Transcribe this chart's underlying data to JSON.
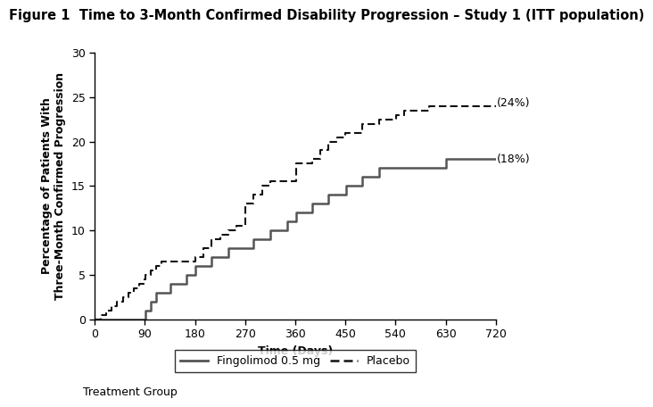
{
  "title": "Figure 1  Time to 3-Month Confirmed Disability Progression – Study 1 (ITT population)",
  "xlabel": "Time (Days)",
  "ylabel": "Percentage of Patients With\nThree-Month Confirmed Progression",
  "xlim": [
    0,
    720
  ],
  "ylim": [
    0,
    30
  ],
  "xticks": [
    0,
    90,
    180,
    270,
    360,
    450,
    540,
    630,
    720
  ],
  "yticks": [
    0,
    5,
    10,
    15,
    20,
    25,
    30
  ],
  "fingolimod_x": [
    0,
    10,
    90,
    91,
    100,
    110,
    120,
    135,
    150,
    165,
    180,
    181,
    195,
    210,
    225,
    240,
    255,
    270,
    285,
    300,
    315,
    330,
    345,
    360,
    361,
    375,
    390,
    405,
    420,
    435,
    450,
    451,
    465,
    480,
    495,
    510,
    525,
    540,
    555,
    570,
    585,
    600,
    615,
    630,
    631,
    645,
    660,
    675,
    690,
    705,
    720
  ],
  "fingolimod_y": [
    0,
    0,
    0,
    1,
    2,
    3,
    3,
    4,
    4,
    5,
    5,
    6,
    6,
    7,
    7,
    8,
    8,
    8,
    9,
    9,
    10,
    10,
    11,
    11,
    12,
    12,
    13,
    13,
    14,
    14,
    14,
    15,
    15,
    16,
    16,
    17,
    17,
    17,
    17,
    17,
    17,
    17,
    17,
    17,
    18,
    18,
    18,
    18,
    18,
    18,
    18
  ],
  "placebo_x": [
    0,
    10,
    20,
    30,
    40,
    50,
    60,
    70,
    80,
    90,
    91,
    100,
    110,
    120,
    130,
    140,
    150,
    160,
    170,
    180,
    181,
    195,
    210,
    225,
    240,
    255,
    270,
    271,
    285,
    300,
    315,
    330,
    345,
    360,
    361,
    390,
    405,
    420,
    435,
    450,
    451,
    480,
    510,
    540,
    541,
    555,
    570,
    585,
    600,
    615,
    630,
    631,
    660,
    690,
    720
  ],
  "placebo_y": [
    0,
    0.5,
    1,
    1.5,
    2,
    2.5,
    3,
    3.5,
    4,
    4.5,
    5,
    5.5,
    6,
    6.5,
    6.5,
    6.5,
    6.5,
    6.5,
    6.5,
    6.5,
    7,
    8,
    9,
    9.5,
    10,
    10.5,
    11,
    13,
    14,
    15,
    15.5,
    15.5,
    15.5,
    15.5,
    17.5,
    18,
    19,
    20,
    20.5,
    21,
    21,
    22,
    22.5,
    22.5,
    23,
    23.5,
    23.5,
    23.5,
    24,
    24,
    24,
    24,
    24,
    24,
    24
  ],
  "fingolimod_color": "#555555",
  "placebo_color": "#111111",
  "fingolimod_label": "Fingolimod 0.5 mg",
  "placebo_label": "Placebo",
  "fingolimod_end_label": "(18%)",
  "placebo_end_label": "(24%)",
  "legend_title": "Treatment Group",
  "background_color": "#ffffff",
  "title_fontsize": 10.5,
  "axis_fontsize": 9,
  "tick_fontsize": 9,
  "label_fontsize": 9
}
